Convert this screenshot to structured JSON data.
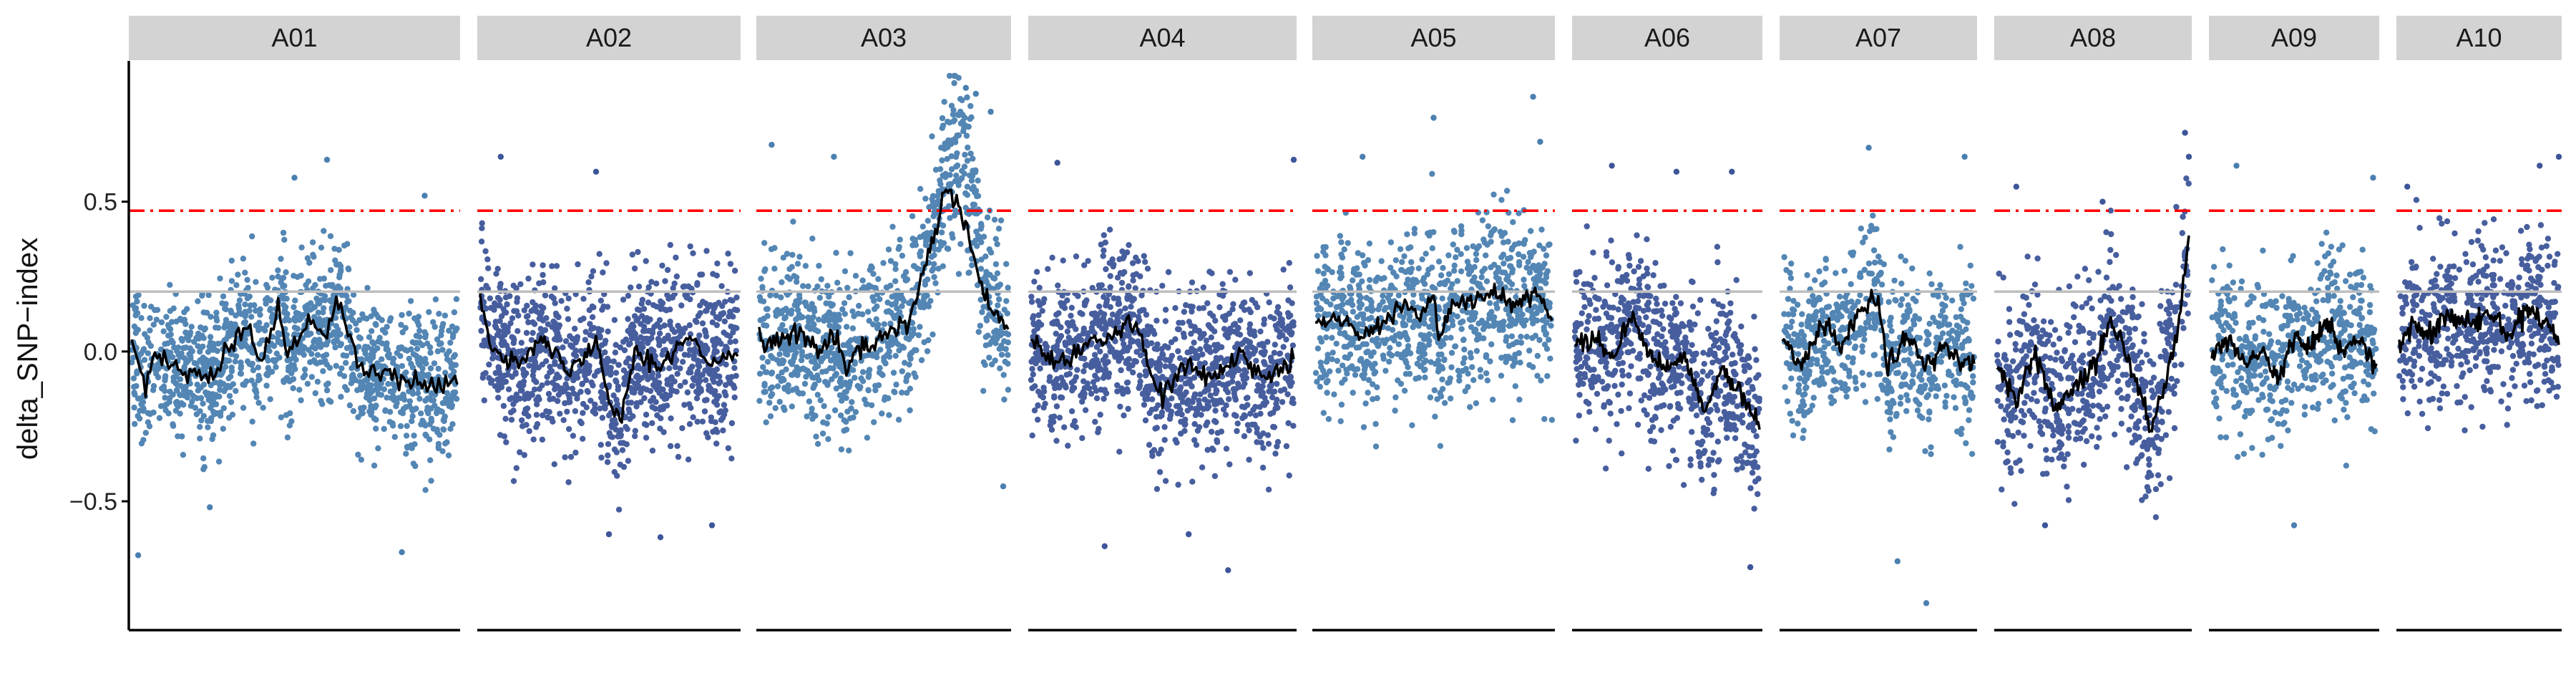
{
  "chart_data": {
    "type": "scatter",
    "ylabel": "delta_SNP−index",
    "ylim": [
      -0.93,
      0.97
    ],
    "y_ticks": [
      0.5,
      0.0,
      -0.5
    ],
    "y_tick_labels": [
      "0.5",
      "0.0",
      "−0.5"
    ],
    "grid": false,
    "legend": "none",
    "reference_lines": [
      {
        "y": 0.47,
        "style": "dashdot",
        "color": "#ff0000"
      },
      {
        "y": 0.2,
        "style": "solid",
        "color": "#bebebe"
      }
    ],
    "point_colors": [
      "#4a7fb0",
      "#3d5599"
    ],
    "trend_color": "#000000",
    "panels": [
      {
        "label": "A01",
        "range": [
          -0.43,
          0.3
        ],
        "trend": [
          [
            0,
            0.05
          ],
          [
            0.04,
            -0.13
          ],
          [
            0.07,
            -0.02
          ],
          [
            0.15,
            -0.05
          ],
          [
            0.25,
            -0.08
          ],
          [
            0.35,
            0.1
          ],
          [
            0.4,
            -0.03
          ],
          [
            0.45,
            0.14
          ],
          [
            0.48,
            0.0
          ],
          [
            0.55,
            0.1
          ],
          [
            0.6,
            0.05
          ],
          [
            0.63,
            0.18
          ],
          [
            0.7,
            -0.05
          ],
          [
            0.8,
            -0.08
          ],
          [
            0.9,
            -0.12
          ],
          [
            1.0,
            -0.08
          ]
        ],
        "outliers": [
          [
            0.02,
            -0.68
          ],
          [
            0.24,
            -0.52
          ],
          [
            0.5,
            0.58
          ],
          [
            0.6,
            0.64
          ],
          [
            0.83,
            -0.67
          ],
          [
            0.9,
            0.52
          ]
        ]
      },
      {
        "label": "A02",
        "range": [
          -0.47,
          0.36
        ],
        "trend": [
          [
            0,
            0.18
          ],
          [
            0.05,
            0.0
          ],
          [
            0.15,
            -0.02
          ],
          [
            0.25,
            0.03
          ],
          [
            0.35,
            -0.07
          ],
          [
            0.45,
            0.05
          ],
          [
            0.5,
            -0.17
          ],
          [
            0.55,
            -0.2
          ],
          [
            0.6,
            0.0
          ],
          [
            0.7,
            -0.05
          ],
          [
            0.8,
            0.05
          ],
          [
            0.9,
            -0.05
          ],
          [
            1.0,
            0.0
          ]
        ],
        "outliers": [
          [
            0.08,
            0.65
          ],
          [
            0.45,
            0.6
          ],
          [
            0.5,
            -0.61
          ],
          [
            0.7,
            -0.62
          ],
          [
            0.9,
            -0.58
          ]
        ]
      },
      {
        "label": "A03",
        "range": [
          -0.44,
          0.4
        ],
        "trend": [
          [
            0,
            0.05
          ],
          [
            0.05,
            0.02
          ],
          [
            0.15,
            0.07
          ],
          [
            0.25,
            0.0
          ],
          [
            0.3,
            0.05
          ],
          [
            0.35,
            -0.05
          ],
          [
            0.4,
            0.0
          ],
          [
            0.5,
            0.05
          ],
          [
            0.6,
            0.1
          ],
          [
            0.7,
            0.38
          ],
          [
            0.75,
            0.52
          ],
          [
            0.8,
            0.42
          ],
          [
            0.85,
            0.3
          ],
          [
            0.9,
            0.15
          ],
          [
            0.95,
            0.12
          ],
          [
            1.0,
            0.08
          ]
        ],
        "outliers": [
          [
            0.05,
            0.69
          ],
          [
            0.3,
            0.65
          ],
          [
            0.83,
            0.88
          ],
          [
            0.87,
            0.86
          ],
          [
            0.93,
            0.8
          ],
          [
            0.98,
            -0.45
          ]
        ],
        "peak": {
          "center": 0.82,
          "width": 0.08,
          "height": 0.33
        }
      },
      {
        "label": "A04",
        "range": [
          -0.45,
          0.38
        ],
        "trend": [
          [
            0,
            0.05
          ],
          [
            0.1,
            -0.05
          ],
          [
            0.2,
            0.02
          ],
          [
            0.3,
            0.05
          ],
          [
            0.4,
            0.1
          ],
          [
            0.45,
            -0.05
          ],
          [
            0.5,
            -0.15
          ],
          [
            0.6,
            -0.05
          ],
          [
            0.7,
            -0.08
          ],
          [
            0.8,
            0.0
          ],
          [
            0.9,
            -0.1
          ],
          [
            1.0,
            -0.02
          ]
        ],
        "outliers": [
          [
            0.1,
            0.63
          ],
          [
            0.28,
            -0.65
          ],
          [
            0.6,
            -0.61
          ],
          [
            0.75,
            -0.73
          ],
          [
            1.0,
            0.64
          ]
        ]
      },
      {
        "label": "A05",
        "range": [
          -0.38,
          0.46
        ],
        "trend": [
          [
            0,
            0.08
          ],
          [
            0.1,
            0.12
          ],
          [
            0.2,
            0.05
          ],
          [
            0.3,
            0.1
          ],
          [
            0.4,
            0.15
          ],
          [
            0.45,
            0.12
          ],
          [
            0.5,
            0.18
          ],
          [
            0.52,
            0.05
          ],
          [
            0.58,
            0.15
          ],
          [
            0.65,
            0.17
          ],
          [
            0.75,
            0.2
          ],
          [
            0.85,
            0.15
          ],
          [
            0.95,
            0.2
          ],
          [
            1.0,
            0.1
          ]
        ],
        "outliers": [
          [
            0.2,
            0.65
          ],
          [
            0.5,
            0.78
          ],
          [
            0.92,
            0.85
          ],
          [
            0.95,
            0.7
          ]
        ]
      },
      {
        "label": "A06",
        "range": [
          -0.52,
          0.36
        ],
        "trend": [
          [
            0,
            0.03
          ],
          [
            0.1,
            0.05
          ],
          [
            0.2,
            -0.02
          ],
          [
            0.3,
            0.12
          ],
          [
            0.4,
            0.0
          ],
          [
            0.5,
            -0.05
          ],
          [
            0.6,
            -0.02
          ],
          [
            0.7,
            -0.2
          ],
          [
            0.8,
            -0.05
          ],
          [
            0.9,
            -0.15
          ],
          [
            1.0,
            -0.25
          ]
        ],
        "outliers": [
          [
            0.2,
            0.62
          ],
          [
            0.55,
            0.6
          ],
          [
            0.85,
            0.6
          ],
          [
            0.95,
            -0.72
          ]
        ]
      },
      {
        "label": "A07",
        "range": [
          -0.4,
          0.4
        ],
        "trend": [
          [
            0,
            0.05
          ],
          [
            0.1,
            -0.05
          ],
          [
            0.2,
            0.1
          ],
          [
            0.3,
            0.02
          ],
          [
            0.4,
            0.12
          ],
          [
            0.5,
            0.18
          ],
          [
            0.55,
            -0.05
          ],
          [
            0.65,
            0.05
          ],
          [
            0.75,
            -0.05
          ],
          [
            0.85,
            0.02
          ],
          [
            0.95,
            -0.05
          ],
          [
            1.0,
            -0.02
          ]
        ],
        "outliers": [
          [
            0.45,
            0.68
          ],
          [
            0.6,
            -0.7
          ],
          [
            0.75,
            -0.84
          ],
          [
            0.95,
            0.65
          ]
        ]
      },
      {
        "label": "A08",
        "range": [
          -0.5,
          0.38
        ],
        "trend": [
          [
            0,
            -0.05
          ],
          [
            0.1,
            -0.15
          ],
          [
            0.2,
            0.0
          ],
          [
            0.3,
            -0.2
          ],
          [
            0.4,
            -0.12
          ],
          [
            0.5,
            -0.05
          ],
          [
            0.6,
            0.1
          ],
          [
            0.7,
            -0.05
          ],
          [
            0.8,
            -0.25
          ],
          [
            0.88,
            -0.1
          ],
          [
            0.95,
            0.1
          ],
          [
            1.0,
            0.38
          ]
        ],
        "outliers": [
          [
            0.1,
            0.55
          ],
          [
            0.25,
            -0.58
          ],
          [
            0.55,
            0.5
          ],
          [
            0.98,
            0.73
          ],
          [
            1.0,
            0.65
          ]
        ]
      },
      {
        "label": "A09",
        "range": [
          -0.38,
          0.38
        ],
        "trend": [
          [
            0,
            -0.02
          ],
          [
            0.1,
            0.05
          ],
          [
            0.2,
            -0.05
          ],
          [
            0.3,
            0.0
          ],
          [
            0.4,
            -0.1
          ],
          [
            0.5,
            0.05
          ],
          [
            0.6,
            0.02
          ],
          [
            0.7,
            0.1
          ],
          [
            0.8,
            0.0
          ],
          [
            0.9,
            0.05
          ],
          [
            1.0,
            -0.05
          ]
        ],
        "outliers": [
          [
            0.15,
            0.62
          ],
          [
            0.5,
            -0.58
          ],
          [
            0.98,
            0.58
          ]
        ]
      },
      {
        "label": "A10",
        "range": [
          -0.38,
          0.45
        ],
        "trend": [
          [
            0,
            0.02
          ],
          [
            0.1,
            0.1
          ],
          [
            0.2,
            0.05
          ],
          [
            0.3,
            0.12
          ],
          [
            0.45,
            0.1
          ],
          [
            0.6,
            0.12
          ],
          [
            0.7,
            0.05
          ],
          [
            0.8,
            0.15
          ],
          [
            0.9,
            0.1
          ],
          [
            1.0,
            0.05
          ]
        ],
        "outliers": [
          [
            0.05,
            0.55
          ],
          [
            0.88,
            0.62
          ],
          [
            1.0,
            0.65
          ]
        ]
      }
    ]
  }
}
